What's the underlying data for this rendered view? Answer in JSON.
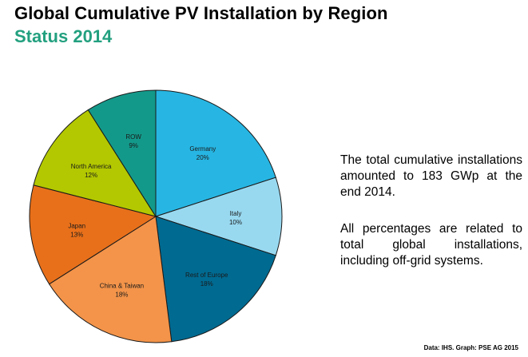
{
  "chart_data": {
    "type": "pie",
    "title": "Global Cumulative PV Installation by Region",
    "subtitle": "Status 2014",
    "slices": [
      {
        "label": "Germany",
        "value_label": "20%",
        "value": 20,
        "color": "#27b6e3"
      },
      {
        "label": "Italy",
        "value_label": "10%",
        "value": 10,
        "color": "#98d9f0"
      },
      {
        "label": "Rest of Europe",
        "value_label": "18%",
        "value": 18,
        "color": "#006a91"
      },
      {
        "label": "China & Taiwan",
        "value_label": "18%",
        "value": 18,
        "color": "#f3944a"
      },
      {
        "label": "Japan",
        "value_label": "13%",
        "value": 13,
        "color": "#e8701a"
      },
      {
        "label": "North America",
        "value_label": "12%",
        "value": 12,
        "color": "#b3c800"
      },
      {
        "label": "ROW",
        "value_label": "9%",
        "value": 9,
        "color": "#13998a"
      }
    ],
    "start_angle": "12 o'clock",
    "direction": "clockwise"
  },
  "notes": {
    "paragraph1": "The total cumulative installations amounted to 183 GWp at the end 2014.",
    "paragraph2": "All percentages are related to total global installations, including off-grid systems."
  },
  "source": "Data: IHS. Graph: PSE AG 2015"
}
